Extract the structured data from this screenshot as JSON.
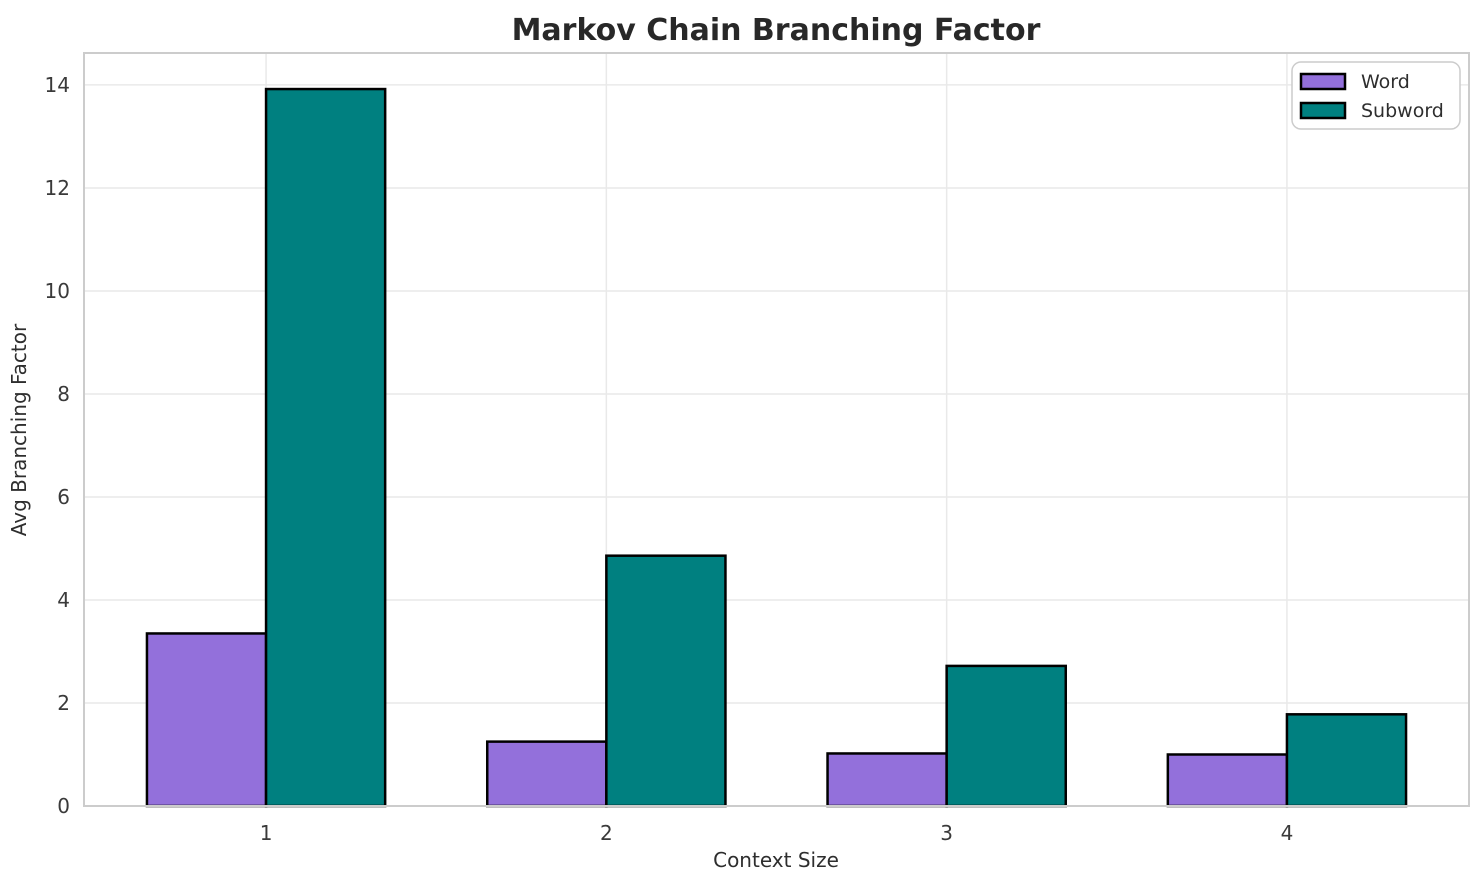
{
  "chart_data": {
    "type": "bar",
    "title": "Markov Chain Branching Factor",
    "xlabel": "Context Size",
    "ylabel": "Avg Branching Factor",
    "categories": [
      "1",
      "2",
      "3",
      "4"
    ],
    "series": [
      {
        "name": "Word",
        "color": "#9370DB",
        "values": [
          3.35,
          1.25,
          1.02,
          1.0
        ]
      },
      {
        "name": "Subword",
        "color": "#008080",
        "values": [
          13.92,
          4.86,
          2.72,
          1.78
        ]
      }
    ],
    "bar_edge_color": "#000000",
    "yticks": [
      0,
      2,
      4,
      6,
      8,
      10,
      12,
      14
    ],
    "ylim": [
      0,
      14.62
    ],
    "grid": true,
    "legend_position": "upper right",
    "colors": {
      "background": "#ffffff",
      "grid": "#e9e9e9",
      "spine": "#cccccc",
      "text": "#2e2e2e"
    }
  }
}
